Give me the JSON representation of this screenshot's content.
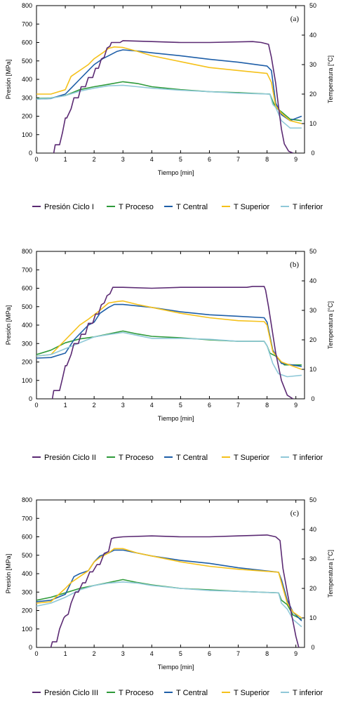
{
  "colors": {
    "presion": "#5b2a73",
    "t_proceso": "#2e9a3a",
    "t_central": "#1f5fa8",
    "t_superior": "#f5c11a",
    "t_inferior": "#8fc8d8"
  },
  "chart_data": [
    {
      "type": "line",
      "panel_label": "(a)",
      "xlabel": "Tiempo [min]",
      "ylabel": "Presión [MPa]",
      "y2label": "Temperatura [°C]",
      "xlim": [
        0,
        9.3
      ],
      "ylim": [
        0,
        800
      ],
      "y2lim": [
        0,
        50
      ],
      "xticks": [
        0,
        1,
        2,
        3,
        4,
        5,
        6,
        7,
        8,
        9
      ],
      "yticks": [
        0,
        100,
        200,
        300,
        400,
        500,
        600,
        700,
        800
      ],
      "y2ticks": [
        0,
        10,
        20,
        30,
        40,
        50
      ],
      "series": [
        {
          "name": "Presión Ciclo I",
          "axis": "left",
          "key": "presion",
          "x": [
            0.6,
            0.65,
            0.8,
            0.9,
            1.0,
            1.05,
            1.2,
            1.3,
            1.45,
            1.55,
            1.7,
            1.8,
            1.95,
            2.05,
            2.15,
            2.25,
            2.35,
            2.45,
            2.55,
            2.6,
            2.9,
            3.0,
            4,
            5,
            6,
            7.5,
            7.8,
            8.05,
            8.15,
            8.3,
            8.4,
            8.5,
            8.6,
            8.75,
            8.9
          ],
          "y": [
            0,
            45,
            45,
            110,
            190,
            190,
            240,
            300,
            300,
            360,
            360,
            410,
            410,
            460,
            460,
            510,
            520,
            570,
            580,
            600,
            600,
            610,
            605,
            600,
            600,
            605,
            600,
            590,
            520,
            380,
            250,
            130,
            50,
            10,
            0
          ]
        },
        {
          "name": "T Proceso",
          "axis": "right",
          "key": "t_proceso",
          "x": [
            0,
            0.5,
            1,
            1.5,
            2,
            2.5,
            3,
            3.5,
            4,
            5,
            6,
            7,
            8.1,
            8.2,
            8.3,
            8.5,
            8.8,
            9.2
          ],
          "y": [
            18.5,
            18.7,
            19.5,
            21.5,
            22.5,
            23.3,
            24.2,
            23.6,
            22.5,
            21.5,
            20.8,
            20.5,
            20.0,
            17.5,
            15.5,
            14.0,
            11.5,
            11.0
          ]
        },
        {
          "name": "T Central",
          "axis": "right",
          "key": "t_central",
          "x": [
            0,
            0.5,
            1,
            1.3,
            1.5,
            1.8,
            2,
            2.3,
            2.5,
            2.8,
            3,
            3.5,
            4,
            5,
            6,
            7,
            8,
            8.15,
            8.3,
            8.5,
            8.8,
            9.2
          ],
          "y": [
            18.3,
            18.5,
            20,
            23,
            25,
            28,
            30,
            32,
            33,
            34.5,
            35,
            34.6,
            34.0,
            33.0,
            31.8,
            30.8,
            29.5,
            28.0,
            17.0,
            13.0,
            11.0,
            12.5
          ]
        },
        {
          "name": "T Superior",
          "axis": "right",
          "key": "t_superior",
          "x": [
            0,
            0.5,
            1,
            1.2,
            1.5,
            1.8,
            2,
            2.3,
            2.5,
            2.7,
            3,
            3.5,
            4,
            5,
            6,
            7,
            8,
            8.15,
            8.3,
            8.5,
            8.8,
            9.2
          ],
          "y": [
            20,
            20,
            21.5,
            26,
            28,
            30,
            32,
            34,
            35.5,
            36,
            35.8,
            34.5,
            33.0,
            31.0,
            29.0,
            28.0,
            27.0,
            24.0,
            16.0,
            13.5,
            11.0,
            10.0
          ]
        },
        {
          "name": "T inferior",
          "axis": "right",
          "key": "t_inferior",
          "x": [
            0,
            0.5,
            1,
            1.5,
            2,
            2.5,
            3,
            3.5,
            4,
            5,
            6,
            7,
            8.1,
            8.2,
            8.3,
            8.5,
            8.8,
            9.2
          ],
          "y": [
            18.3,
            18.6,
            19.5,
            21.0,
            22.0,
            22.8,
            23.0,
            22.5,
            22.0,
            21.3,
            20.8,
            20.3,
            20.0,
            16.5,
            15.5,
            11.0,
            8.5,
            8.5
          ]
        }
      ]
    },
    {
      "type": "line",
      "panel_label": "(b)",
      "xlabel": "Tiempo [min]",
      "ylabel": "Presión [MPa]",
      "y2label": "Temperatura [°C]",
      "xlim": [
        0,
        9.3
      ],
      "ylim": [
        0,
        800
      ],
      "y2lim": [
        0,
        50
      ],
      "xticks": [
        0,
        1,
        2,
        3,
        4,
        5,
        6,
        7,
        8,
        9
      ],
      "yticks": [
        0,
        100,
        200,
        300,
        400,
        500,
        600,
        700,
        800
      ],
      "y2ticks": [
        0,
        10,
        20,
        30,
        40,
        50
      ],
      "series": [
        {
          "name": "Presión Ciclo II",
          "axis": "left",
          "key": "presion",
          "x": [
            0.55,
            0.6,
            0.8,
            0.9,
            1.0,
            1.05,
            1.2,
            1.3,
            1.45,
            1.55,
            1.7,
            1.8,
            1.95,
            2.05,
            2.15,
            2.25,
            2.35,
            2.45,
            2.55,
            2.65,
            3.0,
            4,
            5,
            6,
            7.3,
            7.5,
            7.9,
            7.95,
            8.05,
            8.15,
            8.3,
            8.5,
            8.7,
            8.9
          ],
          "y": [
            0,
            45,
            45,
            110,
            180,
            180,
            240,
            300,
            300,
            350,
            350,
            410,
            410,
            460,
            460,
            510,
            520,
            560,
            570,
            605,
            605,
            600,
            605,
            605,
            605,
            610,
            610,
            590,
            500,
            400,
            250,
            100,
            20,
            0
          ]
        },
        {
          "name": "T Proceso",
          "axis": "right",
          "key": "t_proceso",
          "x": [
            0,
            0.5,
            1,
            1.5,
            2,
            2.5,
            3,
            3.5,
            4,
            5,
            6,
            7,
            7.9,
            8,
            8.1,
            8.3,
            8.6,
            9.2
          ],
          "y": [
            15,
            16.5,
            19,
            20.3,
            21,
            22,
            23,
            22,
            21.2,
            20.7,
            20.0,
            19.5,
            19.5,
            18,
            15.5,
            14.5,
            11.5,
            11.5
          ]
        },
        {
          "name": "T Central",
          "axis": "right",
          "key": "t_central",
          "x": [
            0,
            0.5,
            1,
            1.3,
            1.5,
            1.8,
            2,
            2.2,
            2.5,
            2.7,
            3,
            3.5,
            4,
            5,
            6,
            7,
            7.9,
            8.0,
            8.2,
            8.5,
            9.2
          ],
          "y": [
            13.8,
            14,
            15.5,
            20,
            22,
            25,
            26,
            29,
            31,
            32,
            32,
            31.5,
            31.0,
            29.5,
            28.5,
            28.0,
            27.5,
            26,
            16.5,
            12,
            11
          ]
        },
        {
          "name": "T Superior",
          "axis": "right",
          "key": "t_superior",
          "x": [
            0,
            0.5,
            1,
            1.3,
            1.5,
            1.8,
            2,
            2.2,
            2.5,
            2.8,
            3,
            3.5,
            4,
            5,
            6,
            7,
            7.9,
            8.0,
            8.2,
            8.5,
            9.2
          ],
          "y": [
            14.5,
            15,
            20,
            23,
            25,
            27,
            28.5,
            30,
            32.5,
            33,
            33.2,
            32,
            31.0,
            29,
            27.5,
            26.5,
            26.2,
            25,
            16,
            12.5,
            10
          ]
        },
        {
          "name": "T inferior",
          "axis": "right",
          "key": "t_inferior",
          "x": [
            0,
            0.5,
            1,
            1.5,
            2,
            2.5,
            3,
            3.5,
            4,
            5,
            6,
            7,
            7.9,
            8.0,
            8.2,
            8.4,
            8.7,
            9.2
          ],
          "y": [
            14.5,
            15,
            17,
            19,
            21,
            21.8,
            22.5,
            21.5,
            20.5,
            20.5,
            20.2,
            19.5,
            19.5,
            18,
            12,
            8.5,
            7.5,
            8
          ]
        }
      ]
    },
    {
      "type": "line",
      "panel_label": "(c)",
      "xlabel": "Tiempo [min]",
      "ylabel": "Presión [MPa]",
      "y2label": "Temperatura [°C]",
      "xlim": [
        0,
        9.3
      ],
      "ylim": [
        0,
        800
      ],
      "y2lim": [
        0,
        50
      ],
      "xticks": [
        0,
        1,
        2,
        3,
        4,
        5,
        6,
        7,
        8,
        9
      ],
      "yticks": [
        0,
        100,
        200,
        300,
        400,
        500,
        600,
        700,
        800
      ],
      "y2ticks": [
        0,
        10,
        20,
        30,
        40,
        50
      ],
      "series": [
        {
          "name": "Presión Ciclo III",
          "axis": "left",
          "key": "presion",
          "x": [
            0.5,
            0.55,
            0.7,
            0.8,
            0.95,
            1.0,
            1.1,
            1.2,
            1.35,
            1.45,
            1.6,
            1.7,
            1.85,
            1.95,
            2.1,
            2.2,
            2.35,
            2.5,
            2.6,
            2.7,
            3.0,
            4,
            5,
            6,
            7,
            8.0,
            8.3,
            8.45,
            8.55,
            8.7,
            8.85,
            9.0,
            9.1
          ],
          "y": [
            0,
            30,
            30,
            100,
            160,
            170,
            180,
            240,
            300,
            300,
            350,
            350,
            410,
            410,
            450,
            450,
            510,
            520,
            590,
            595,
            600,
            605,
            600,
            600,
            605,
            610,
            600,
            580,
            430,
            300,
            180,
            60,
            0
          ]
        },
        {
          "name": "T Proceso",
          "axis": "right",
          "key": "t_proceso",
          "x": [
            0,
            0.5,
            1,
            1.5,
            2,
            2.5,
            3,
            3.5,
            4,
            5,
            6,
            7,
            8.4,
            8.5,
            8.7,
            8.9,
            9.2
          ],
          "y": [
            16,
            17,
            18.5,
            20,
            21,
            22,
            23,
            22,
            21.2,
            20.0,
            19.5,
            19.0,
            18.5,
            16,
            14.5,
            11,
            9.5
          ]
        },
        {
          "name": "T Central",
          "axis": "right",
          "key": "t_central",
          "x": [
            0,
            0.5,
            1,
            1.3,
            1.5,
            1.8,
            2,
            2.2,
            2.5,
            2.7,
            3,
            3.5,
            4,
            5,
            6,
            7,
            8.4,
            8.5,
            8.7,
            8.9,
            9.2
          ],
          "y": [
            15.5,
            16,
            18,
            24,
            25,
            26,
            29,
            31,
            32,
            33,
            33,
            32,
            31,
            29.5,
            28.5,
            27,
            25.5,
            23,
            16,
            12,
            9
          ]
        },
        {
          "name": "T Superior",
          "axis": "right",
          "key": "t_superior",
          "x": [
            0,
            0.5,
            1,
            1.2,
            1.5,
            1.8,
            2,
            2.2,
            2.5,
            2.7,
            3,
            3.5,
            4,
            5,
            6,
            7,
            8.4,
            8.5,
            8.7,
            8.9,
            9.2
          ],
          "y": [
            15,
            15.5,
            20,
            22,
            24,
            26,
            29,
            30.5,
            32,
            33.5,
            33.5,
            32,
            31,
            29,
            27.5,
            26.5,
            25.5,
            22,
            15,
            12,
            10
          ]
        },
        {
          "name": "T inferior",
          "axis": "right",
          "key": "t_inferior",
          "x": [
            0,
            0.5,
            1,
            1.5,
            2,
            2.5,
            3,
            3.5,
            4,
            5,
            6,
            7,
            8.4,
            8.5,
            8.7,
            8.9,
            9.2
          ],
          "y": [
            14,
            15,
            17,
            19.5,
            21,
            21.8,
            22.2,
            21.8,
            21,
            20,
            19.3,
            19,
            18.5,
            15,
            13,
            9.5,
            7
          ]
        }
      ]
    }
  ]
}
